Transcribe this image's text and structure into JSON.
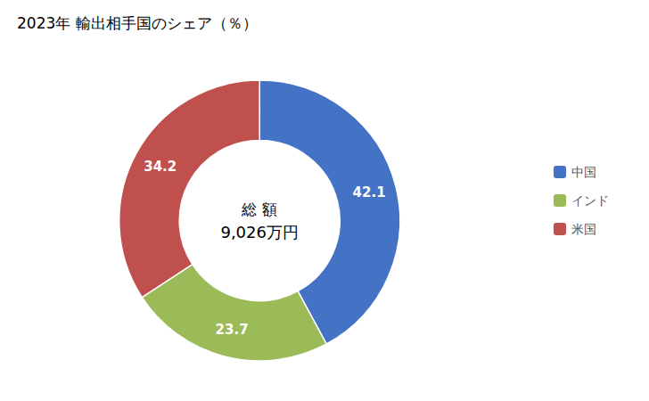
{
  "chart_data": {
    "type": "donut",
    "title": "2023年 輸出相手国のシェア（％）",
    "categories": [
      "中国",
      "インド",
      "米国"
    ],
    "values": [
      42.1,
      23.7,
      34.2
    ],
    "colors": [
      "#4472C4",
      "#9BBB59",
      "#C0504D"
    ],
    "data_labels": true,
    "legend": "right",
    "annotations": [
      "総 額",
      "9,026万円"
    ]
  }
}
